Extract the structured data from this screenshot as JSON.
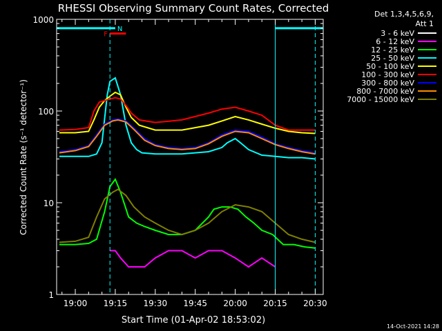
{
  "chart_data": {
    "type": "line",
    "title": "RHESSI Observing Summary Count Rates, Corrected",
    "xlabel": "Start Time (01-Apr-02 18:53:02)",
    "ylabel": "Corrected Count Rate (s⁻¹ detector⁻¹)",
    "x_unit": "minutes since 19:00 UT (01-Apr-02)",
    "xlim": [
      -7,
      93
    ],
    "ylim": [
      1,
      1000
    ],
    "yscale": "log",
    "x_ticks": [
      {
        "v": 0,
        "label": "19:00"
      },
      {
        "v": 15,
        "label": "19:15"
      },
      {
        "v": 30,
        "label": "19:30"
      },
      {
        "v": 45,
        "label": "19:45"
      },
      {
        "v": 60,
        "label": "20:00"
      },
      {
        "v": 75,
        "label": "20:15"
      },
      {
        "v": 90,
        "label": "20:30"
      }
    ],
    "y_ticks": [
      {
        "v": 1,
        "label": "1"
      },
      {
        "v": 10,
        "label": "10"
      },
      {
        "v": 100,
        "label": "100"
      },
      {
        "v": 1000,
        "label": "1000"
      }
    ],
    "legend_header": "Det 1,3,4,5,6,9,",
    "legend_header2": "Att 1",
    "legend_position": "right",
    "series": [
      {
        "name": "3 - 6 keV",
        "color": "#ffffff",
        "x": [],
        "y": []
      },
      {
        "name": "6 - 12 keV",
        "color": "#ff00ff",
        "x": [
          13,
          15,
          17,
          20,
          23,
          26,
          30,
          35,
          40,
          45,
          50,
          55,
          60,
          65,
          70,
          75
        ],
        "y": [
          3,
          3,
          2.5,
          2,
          2,
          2,
          2.5,
          3,
          3,
          2.5,
          3,
          3,
          2.5,
          2,
          2.5,
          2
        ]
      },
      {
        "name": "12 - 25 keV",
        "color": "#00ff00",
        "x": [
          -6,
          0,
          5,
          8,
          11,
          13,
          15,
          17,
          20,
          23,
          26,
          30,
          35,
          40,
          45,
          50,
          52,
          55,
          58,
          61,
          64,
          67,
          70,
          74,
          78,
          82,
          86,
          90
        ],
        "y": [
          3.5,
          3.5,
          3.6,
          4,
          8,
          15,
          18,
          13,
          7,
          6,
          5.5,
          5,
          4.5,
          4.5,
          5,
          7,
          8.5,
          9,
          9,
          8.5,
          7,
          6,
          5,
          4.5,
          3.5,
          3.5,
          3.3,
          3.2
        ]
      },
      {
        "name": "25 - 50 keV",
        "color": "#00ffff",
        "x": [
          -6,
          0,
          5,
          8,
          10,
          12,
          13,
          15,
          17,
          19,
          21,
          23,
          25,
          30,
          35,
          40,
          45,
          50,
          55,
          57,
          60,
          62,
          65,
          70,
          75,
          80,
          85,
          90
        ],
        "y": [
          32,
          32,
          32,
          34,
          45,
          150,
          210,
          230,
          150,
          70,
          45,
          38,
          35,
          34,
          34,
          34,
          35,
          36,
          40,
          45,
          50,
          45,
          38,
          33,
          32,
          31,
          31,
          30
        ]
      },
      {
        "name": "50 - 100 keV",
        "color": "#ffff00",
        "x": [
          -6,
          0,
          5,
          7,
          9,
          11,
          13,
          15,
          17,
          19,
          21,
          24,
          30,
          40,
          50,
          55,
          60,
          65,
          70,
          75,
          80,
          85,
          90
        ],
        "y": [
          58,
          58,
          60,
          80,
          110,
          130,
          145,
          160,
          150,
          110,
          85,
          70,
          62,
          62,
          70,
          78,
          87,
          80,
          72,
          65,
          60,
          58,
          57
        ]
      },
      {
        "name": "100 - 300 keV",
        "color": "#ff0000",
        "x": [
          -6,
          0,
          5,
          7,
          9,
          11,
          13,
          15,
          17,
          19,
          21,
          24,
          30,
          40,
          50,
          55,
          60,
          65,
          70,
          75,
          80,
          85,
          90
        ],
        "y": [
          62,
          63,
          66,
          100,
          125,
          130,
          135,
          140,
          135,
          115,
          95,
          80,
          75,
          80,
          95,
          105,
          110,
          100,
          90,
          70,
          62,
          62,
          62
        ]
      },
      {
        "name": "300 - 800 keV",
        "color": "#0000ff",
        "x": [
          -6,
          0,
          5,
          8,
          11,
          14,
          16,
          19,
          22,
          26,
          30,
          35,
          40,
          45,
          50,
          55,
          60,
          65,
          70,
          75,
          80,
          85,
          90
        ],
        "y": [
          36,
          38,
          42,
          55,
          72,
          80,
          82,
          78,
          65,
          50,
          43,
          40,
          39,
          40,
          45,
          55,
          62,
          60,
          52,
          44,
          40,
          37,
          35
        ]
      },
      {
        "name": "800 - 7000 keV",
        "color": "#ff8c00",
        "x": [
          -6,
          0,
          5,
          8,
          11,
          14,
          16,
          19,
          22,
          26,
          30,
          35,
          40,
          45,
          50,
          55,
          60,
          65,
          70,
          75,
          80,
          85,
          90
        ],
        "y": [
          35,
          37,
          41,
          53,
          70,
          78,
          80,
          76,
          63,
          48,
          42,
          39,
          38,
          39,
          44,
          53,
          60,
          58,
          50,
          43,
          39,
          36,
          34
        ]
      },
      {
        "name": "7000 - 15000 keV",
        "color": "#808000",
        "x": [
          -6,
          0,
          5,
          8,
          11,
          14,
          16,
          19,
          22,
          26,
          30,
          35,
          40,
          45,
          50,
          55,
          60,
          65,
          70,
          75,
          80,
          85,
          90
        ],
        "y": [
          3.7,
          3.8,
          4.2,
          7,
          11,
          13,
          14,
          12,
          9,
          7,
          6,
          5,
          4.5,
          5,
          6,
          8,
          9.5,
          9,
          8,
          6,
          4.5,
          4,
          3.7
        ]
      }
    ],
    "annotations": [
      {
        "label": "N",
        "color": "#00ffff",
        "x_start": -7,
        "x_end": 15,
        "y": 800
      },
      {
        "label": "",
        "color": "#00ffff",
        "x_start": 75,
        "x_end": 93,
        "y": 800
      },
      {
        "label": "F",
        "color": "#ff0000",
        "x_start": 13,
        "x_end": 19,
        "y": 700
      }
    ],
    "vlines": [
      {
        "x": 13,
        "style": "dashed"
      },
      {
        "x": 75,
        "style": "solid"
      },
      {
        "x": 90,
        "style": "dashed"
      }
    ]
  },
  "timestamp": "14-Oct-2021 14:28"
}
